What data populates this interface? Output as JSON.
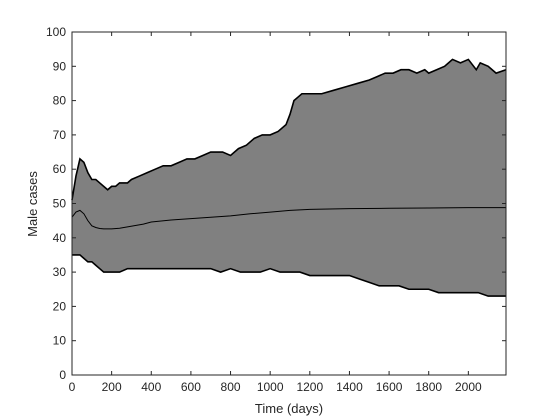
{
  "chart_data": {
    "type": "area",
    "title": "",
    "xlabel": "Time (days)",
    "ylabel": "Male cases",
    "xlim": [
      0,
      2190
    ],
    "ylim": [
      0,
      100
    ],
    "xticks": [
      0,
      200,
      400,
      600,
      800,
      1000,
      1200,
      1400,
      1600,
      1800,
      2000
    ],
    "yticks": [
      0,
      10,
      20,
      30,
      40,
      50,
      60,
      70,
      80,
      90,
      100
    ],
    "grid": false,
    "colors": {
      "band_fill": "#808080",
      "line": "#000000",
      "axes": "#262626"
    },
    "series": [
      {
        "role": "upper bound",
        "x": [
          0,
          20,
          40,
          60,
          80,
          100,
          120,
          140,
          160,
          180,
          200,
          220,
          240,
          260,
          280,
          300,
          340,
          380,
          420,
          460,
          500,
          540,
          580,
          620,
          660,
          700,
          760,
          800,
          840,
          880,
          920,
          960,
          1000,
          1040,
          1080,
          1100,
          1120,
          1140,
          1160,
          1200,
          1260,
          1320,
          1380,
          1440,
          1500,
          1540,
          1580,
          1620,
          1660,
          1700,
          1740,
          1780,
          1800,
          1840,
          1880,
          1900,
          1920,
          1960,
          2000,
          2040,
          2060,
          2100,
          2140,
          2190
        ],
        "y": [
          51,
          58,
          63,
          62,
          59,
          57,
          57,
          56,
          55,
          54,
          55,
          55,
          56,
          56,
          56,
          57,
          58,
          59,
          60,
          61,
          61,
          62,
          63,
          63,
          64,
          65,
          65,
          64,
          66,
          67,
          69,
          70,
          70,
          71,
          73,
          76,
          80,
          81,
          82,
          82,
          82,
          83,
          84,
          85,
          86,
          87,
          88,
          88,
          89,
          89,
          88,
          89,
          88,
          89,
          90,
          91,
          92,
          91,
          92,
          89,
          91,
          90,
          88,
          89
        ]
      },
      {
        "role": "mean",
        "x": [
          0,
          20,
          40,
          60,
          80,
          100,
          120,
          140,
          160,
          180,
          200,
          240,
          280,
          320,
          360,
          400,
          500,
          600,
          700,
          800,
          900,
          1000,
          1100,
          1200,
          1400,
          1600,
          1800,
          2000,
          2190
        ],
        "y": [
          46,
          47.5,
          48,
          47,
          45,
          43.5,
          43,
          42.7,
          42.6,
          42.6,
          42.6,
          42.8,
          43.2,
          43.6,
          44,
          44.6,
          45.2,
          45.6,
          46,
          46.4,
          47,
          47.5,
          48,
          48.3,
          48.5,
          48.6,
          48.7,
          48.8,
          48.8
        ]
      },
      {
        "role": "lower bound",
        "x": [
          0,
          20,
          40,
          60,
          80,
          100,
          120,
          140,
          160,
          180,
          200,
          240,
          280,
          320,
          360,
          400,
          450,
          500,
          550,
          600,
          650,
          700,
          750,
          800,
          850,
          900,
          950,
          1000,
          1050,
          1100,
          1150,
          1200,
          1250,
          1300,
          1350,
          1400,
          1450,
          1500,
          1550,
          1600,
          1650,
          1700,
          1750,
          1800,
          1850,
          1900,
          1950,
          2000,
          2050,
          2100,
          2150,
          2190
        ],
        "y": [
          35,
          35,
          35,
          34,
          33,
          33,
          32,
          31,
          30,
          30,
          30,
          30,
          31,
          31,
          31,
          31,
          31,
          31,
          31,
          31,
          31,
          31,
          30,
          31,
          30,
          30,
          30,
          31,
          30,
          30,
          30,
          29,
          29,
          29,
          29,
          29,
          28,
          27,
          26,
          26,
          26,
          25,
          25,
          25,
          24,
          24,
          24,
          24,
          24,
          23,
          23,
          23
        ]
      }
    ]
  }
}
